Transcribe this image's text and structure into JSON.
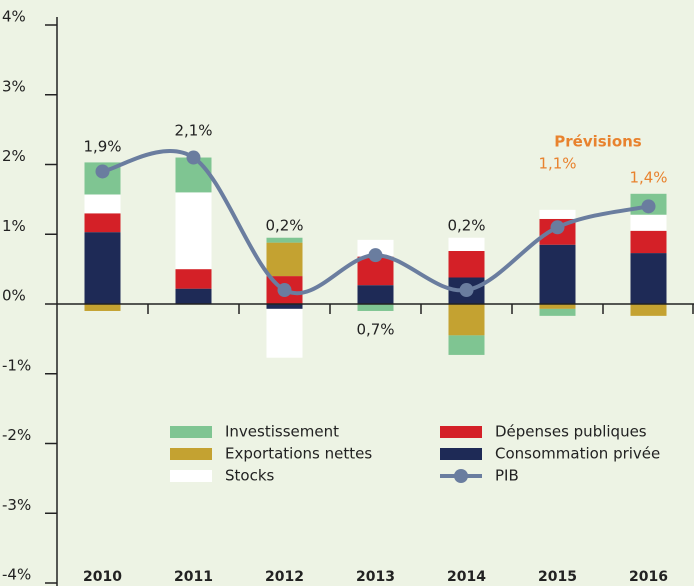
{
  "chart_data": {
    "type": "stacked-bar-line",
    "categories": [
      "2010",
      "2011",
      "2012",
      "2013",
      "2014",
      "2015",
      "2016"
    ],
    "series": [
      {
        "name": "Investissement",
        "color": "#7fc592",
        "values": [
          0.46,
          0.5,
          0.07,
          -0.1,
          -0.28,
          -0.1,
          0.3
        ]
      },
      {
        "name": "Dépenses publiques",
        "color": "#d42027",
        "values": [
          0.27,
          0.28,
          0.4,
          0.41,
          0.38,
          0.37,
          0.32
        ]
      },
      {
        "name": "Exportations nettes",
        "color": "#c4a231",
        "values": [
          -0.1,
          0,
          0.48,
          0,
          -0.45,
          -0.07,
          -0.17
        ]
      },
      {
        "name": "Consommation privée",
        "color": "#1e2a56",
        "values": [
          1.03,
          0.22,
          -0.07,
          0.27,
          0.38,
          0.85,
          0.73
        ]
      },
      {
        "name": "Stocks",
        "color": "#ffffff",
        "values": [
          0.27,
          1.1,
          -0.7,
          0.24,
          0.19,
          0.13,
          0.23
        ]
      },
      {
        "name": "PIB",
        "color": "#6a7d9f",
        "type": "line",
        "values": [
          1.9,
          2.1,
          0.2,
          0.7,
          0.2,
          1.1,
          1.4
        ],
        "value_labels": [
          "1,9%",
          "2,1%",
          "0,2%",
          "0,7%",
          "0,2%",
          "1,1%",
          "1,4%"
        ],
        "value_label_colors": [
          "#222222",
          "#222222",
          "#222222",
          "#222222",
          "#222222",
          "#e8822e",
          "#e8822e"
        ]
      }
    ],
    "annotation": {
      "text": "Prévisions",
      "color": "#e8822e"
    },
    "ylim": [
      -4,
      4
    ],
    "yticks": [
      {
        "value": -4,
        "label": "-4%"
      },
      {
        "value": -3,
        "label": "-3%"
      },
      {
        "value": -2,
        "label": "-2%"
      },
      {
        "value": -1,
        "label": "-1%"
      },
      {
        "value": 0,
        "label": "0%"
      },
      {
        "value": 1,
        "label": "1%"
      },
      {
        "value": 2,
        "label": "2%"
      },
      {
        "value": 3,
        "label": "3%"
      },
      {
        "value": 4,
        "label": "4%"
      }
    ],
    "background": "#edf3e4"
  }
}
